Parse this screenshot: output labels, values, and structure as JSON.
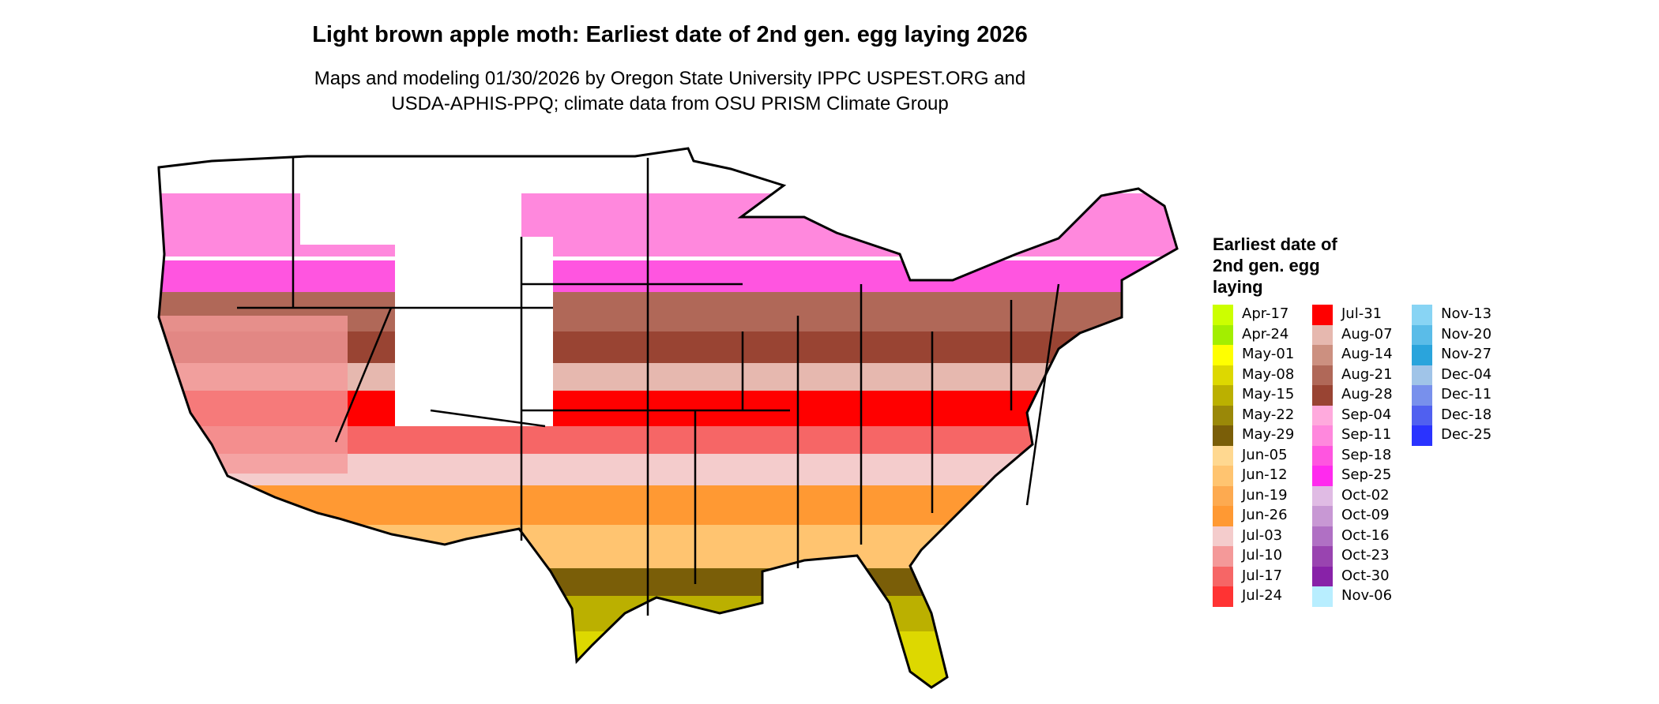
{
  "title": "Light brown apple moth: Earliest date of 2nd gen. egg laying 2026",
  "subtitle_line1": "Maps and modeling 01/30/2026 by Oregon State University IPPC USPEST.ORG and",
  "subtitle_line2": "USDA-APHIS-PPQ; climate data from OSU PRISM Climate Group",
  "legend": {
    "title": "Earliest date of 2nd gen. egg laying",
    "items": [
      {
        "label": "Apr-17",
        "color": "#CCFF00"
      },
      {
        "label": "Apr-24",
        "color": "#A3EE00"
      },
      {
        "label": "May-01",
        "color": "#FFFF00"
      },
      {
        "label": "May-08",
        "color": "#DDD800"
      },
      {
        "label": "May-15",
        "color": "#BBB000"
      },
      {
        "label": "May-22",
        "color": "#9A8808"
      },
      {
        "label": "May-29",
        "color": "#7A5E08"
      },
      {
        "label": "Jun-05",
        "color": "#FFD890"
      },
      {
        "label": "Jun-12",
        "color": "#FFC470"
      },
      {
        "label": "Jun-19",
        "color": "#FDAA50"
      },
      {
        "label": "Jun-26",
        "color": "#FF9933"
      },
      {
        "label": "Jul-03",
        "color": "#F4CCCC"
      },
      {
        "label": "Jul-10",
        "color": "#F49999"
      },
      {
        "label": "Jul-17",
        "color": "#F66666"
      },
      {
        "label": "Jul-24",
        "color": "#FF3333"
      },
      {
        "label": "Jul-31",
        "color": "#FF0000"
      },
      {
        "label": "Aug-07",
        "color": "#E6B8AF"
      },
      {
        "label": "Aug-14",
        "color": "#CC9080"
      },
      {
        "label": "Aug-21",
        "color": "#B06858"
      },
      {
        "label": "Aug-28",
        "color": "#994433"
      },
      {
        "label": "Sep-04",
        "color": "#FFAADD"
      },
      {
        "label": "Sep-11",
        "color": "#FF88DD"
      },
      {
        "label": "Sep-18",
        "color": "#FF55E0"
      },
      {
        "label": "Sep-25",
        "color": "#FF2AEE"
      },
      {
        "label": "Oct-02",
        "color": "#E0BBE4"
      },
      {
        "label": "Oct-09",
        "color": "#C898D4"
      },
      {
        "label": "Oct-16",
        "color": "#B070C4"
      },
      {
        "label": "Oct-23",
        "color": "#9944B0"
      },
      {
        "label": "Oct-30",
        "color": "#8822A8"
      },
      {
        "label": "Nov-06",
        "color": "#B8EEFF"
      },
      {
        "label": "Nov-13",
        "color": "#88D4F4"
      },
      {
        "label": "Nov-20",
        "color": "#5ABCE8"
      },
      {
        "label": "Nov-27",
        "color": "#2AA4DC"
      },
      {
        "label": "Dec-04",
        "color": "#A0C4E8"
      },
      {
        "label": "Dec-11",
        "color": "#7890EC"
      },
      {
        "label": "Dec-18",
        "color": "#5060F0"
      },
      {
        "label": "Dec-25",
        "color": "#2A33FF"
      }
    ]
  }
}
